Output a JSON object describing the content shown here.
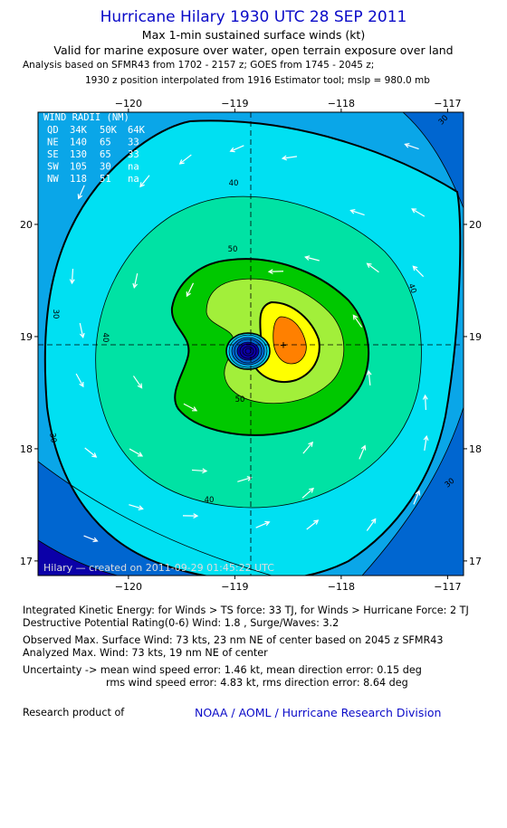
{
  "header": {
    "title": "Hurricane Hilary 1930 UTC 28 SEP 2011",
    "subtitle1": "Max 1-min sustained surface winds (kt)",
    "subtitle2": "Valid for marine exposure over water, open terrain exposure over land",
    "analysis_note1": "Analysis based on SFMR43 from 1702 - 2157 z; GOES from 1745 - 2045 z;",
    "analysis_note2": "1930 z position interpolated from 1916 Estimator tool; mslp = 980.0 mb"
  },
  "chart_data": {
    "type": "heatmap",
    "subtype": "filled-contour wind analysis map",
    "x_ticks": [
      -120,
      -119,
      -118,
      -117
    ],
    "x_tick_labels": [
      "−120",
      "−119",
      "−118",
      "−117"
    ],
    "y_ticks": [
      20,
      19,
      18,
      17
    ],
    "y_tick_labels": [
      "20",
      "19",
      "18",
      "17"
    ],
    "xlim": [
      -120.85,
      -116.85
    ],
    "ylim": [
      16.87,
      21.0
    ],
    "center": {
      "lon": -118.85,
      "lat": 18.87
    },
    "max_wind_location": {
      "lon": -118.55,
      "lat": 18.87
    },
    "contour_levels": [
      10,
      20,
      30,
      40,
      50,
      60,
      70
    ],
    "contour_labels": [
      "30",
      "30",
      "30",
      "40",
      "40",
      "40",
      "40",
      "50",
      "50",
      "30"
    ],
    "colors": {
      "lt10": "#0b00a8",
      "10-20": "#0066d0",
      "20-30": "#0aa6e8",
      "30-40": "#00e0f2",
      "40-50": "#00e2a4",
      "50-60": "#00c800",
      "60-70": "#a2ef3a",
      "70-80": "#ffff00",
      "80+": "#ff8000",
      "frame": "#000000",
      "watermark": "#dddddd"
    },
    "wind_radii": {
      "heading": "WIND RADII (NM)",
      "columns": [
        "QD",
        "34K",
        "50K",
        "64K"
      ],
      "rows": [
        [
          "NE",
          "140",
          "65",
          "33"
        ],
        [
          "SE",
          "130",
          "65",
          "33"
        ],
        [
          "SW",
          "105",
          "30",
          "na"
        ],
        [
          "NW",
          "118",
          "51",
          "na"
        ]
      ]
    },
    "watermark": "Hilary — created on 2011-09-29 01:45:22 UTC"
  },
  "stats": {
    "ike": "Integrated Kinetic Energy:  for Winds > TS force: 33 TJ,  for Winds > Hurricane Force: 2 TJ",
    "dpr": "Destructive Potential Rating(0-6)   Wind: 1.8 , Surge/Waves: 3.2",
    "observed": "Observed Max. Surface Wind: 73 kts, 23 nm NE of center based on 2045 z SFMR43",
    "analyzed": "Analyzed Max. Wind: 73 kts, 19 nm NE of center",
    "uncertainty1": "Uncertainty -> mean wind speed error: 1.46 kt,   mean direction error: 0.15 deg",
    "uncertainty2": "rms wind speed error: 4.83 kt,   rms direction error: 8.64 deg"
  },
  "credit": {
    "label": "Research product of",
    "org": "NOAA / AOML / Hurricane Research Division"
  }
}
